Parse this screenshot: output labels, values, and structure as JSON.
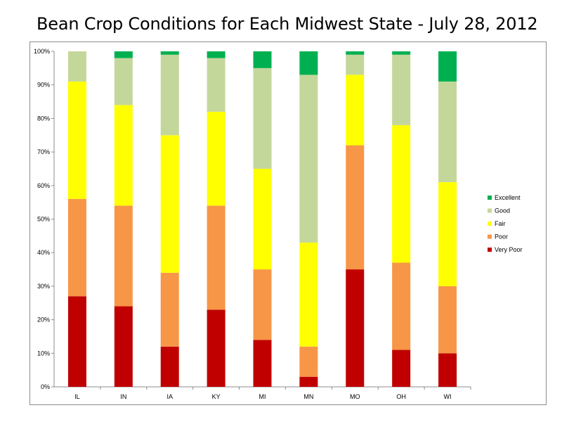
{
  "chart_data": {
    "type": "bar",
    "stacked": true,
    "percent": true,
    "title": "Bean Crop Conditions for Each Midwest State - July 28, 2012",
    "xlabel": "",
    "ylabel": "",
    "ylim": [
      0,
      100
    ],
    "yticks": [
      "0%",
      "10%",
      "20%",
      "30%",
      "40%",
      "50%",
      "60%",
      "70%",
      "80%",
      "90%",
      "100%"
    ],
    "grid": false,
    "legend_position": "right",
    "categories": [
      "IL",
      "IN",
      "IA",
      "KY",
      "MI",
      "MN",
      "MO",
      "OH",
      "WI"
    ],
    "series": [
      {
        "name": "Very Poor",
        "color": "#c00000",
        "values": [
          27,
          24,
          12,
          23,
          14,
          3,
          35,
          11,
          10
        ]
      },
      {
        "name": "Poor",
        "color": "#f79646",
        "values": [
          29,
          30,
          22,
          31,
          21,
          9,
          37,
          26,
          20
        ]
      },
      {
        "name": "Fair",
        "color": "#ffff00",
        "values": [
          35,
          30,
          41,
          28,
          30,
          31,
          21,
          41,
          31
        ]
      },
      {
        "name": "Good",
        "color": "#c4d79b",
        "values": [
          9,
          14,
          24,
          16,
          30,
          50,
          6,
          21,
          30
        ]
      },
      {
        "name": "Excellent",
        "color": "#00b050",
        "values": [
          0,
          2,
          1,
          2,
          5,
          7,
          1,
          1,
          9
        ]
      }
    ]
  }
}
